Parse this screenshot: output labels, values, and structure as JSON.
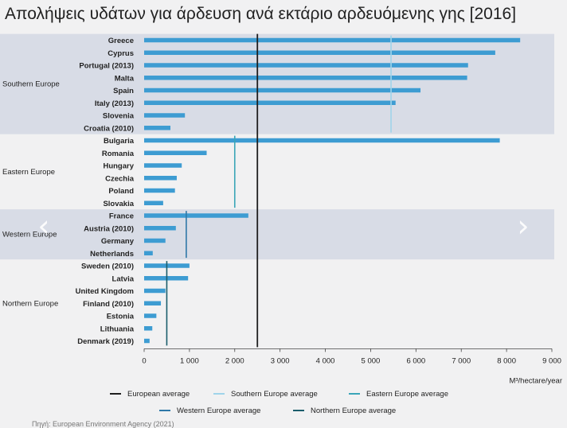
{
  "title": "Απολήψεις υδάτων για άρδευση ανά εκτάριο αρδευόμενης γης [2016]",
  "source_text": "Πηγή: European Environment Agency (2021)",
  "nav": {
    "prev_icon": "‹",
    "next_icon": "›"
  },
  "colors": {
    "bar": "#3d9cd2",
    "band": "#d8dce6",
    "european": "#1e1e1e",
    "southern": "#9fd4ea",
    "eastern": "#3aa5b8",
    "western": "#2e78a8",
    "northern": "#1a5d6b"
  },
  "chart_data": {
    "type": "bar",
    "orientation": "horizontal",
    "xlabel": "M³/hectare/year",
    "xlim": [
      0,
      9000
    ],
    "x_ticks": [
      0,
      1000,
      2000,
      3000,
      4000,
      5000,
      6000,
      7000,
      8000,
      9000
    ],
    "x_tick_labels": [
      "0",
      "1 000",
      "2 000",
      "3 000",
      "4 000",
      "5 000",
      "6 000",
      "7 000",
      "8 000",
      "9 000"
    ],
    "categories": [
      "Greece",
      "Cyprus",
      "Portugal (2013)",
      "Malta",
      "Spain",
      "Italy (2013)",
      "Slovenia",
      "Croatia (2010)",
      "Bulgaria",
      "Romania",
      "Hungary",
      "Czechia",
      "Poland",
      "Slovakia",
      "France",
      "Austria (2010)",
      "Germany",
      "Netherlands",
      "Sweden (2010)",
      "Latvia",
      "United Kingdom",
      "Finland (2010)",
      "Estonia",
      "Lithuania",
      "Denmark (2019)"
    ],
    "values": [
      8300,
      7750,
      7150,
      7130,
      6100,
      5550,
      900,
      580,
      7850,
      1380,
      830,
      720,
      680,
      420,
      2300,
      700,
      470,
      190,
      1000,
      970,
      470,
      370,
      270,
      180,
      120
    ],
    "groups": [
      {
        "name": "Southern Europe",
        "start": 0,
        "count": 8,
        "shaded": true,
        "average": 5450,
        "average_key": "southern"
      },
      {
        "name": "Eastern Europe",
        "start": 8,
        "count": 6,
        "shaded": false,
        "average": 2000,
        "average_key": "eastern"
      },
      {
        "name": "Western Europe",
        "start": 14,
        "count": 4,
        "shaded": true,
        "average": 930,
        "average_key": "western"
      },
      {
        "name": "Northern Europe",
        "start": 18,
        "count": 7,
        "shaded": false,
        "average": 500,
        "average_key": "northern"
      }
    ],
    "european_average": 2500,
    "legend": [
      {
        "label": "European average",
        "key": "european"
      },
      {
        "label": "Southern Europe average",
        "key": "southern"
      },
      {
        "label": "Eastern Europe average",
        "key": "eastern"
      },
      {
        "label": "Western Europe average",
        "key": "western"
      },
      {
        "label": "Northern Europe average",
        "key": "northern"
      }
    ],
    "legend_position": "bottom",
    "grid": false
  }
}
